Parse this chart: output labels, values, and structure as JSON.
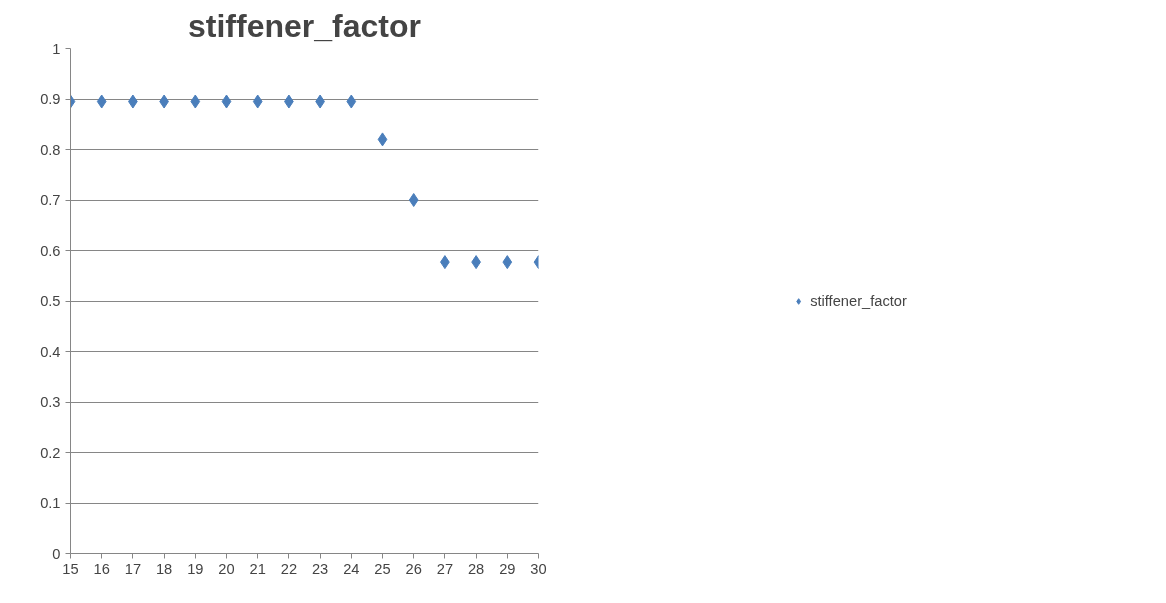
{
  "chart_data": {
    "type": "scatter",
    "title": "stiffener_factor",
    "x": [
      15,
      16,
      17,
      18,
      19,
      20,
      21,
      22,
      23,
      24,
      25,
      26,
      27,
      28,
      29,
      30
    ],
    "series": [
      {
        "name": "stiffener_factor",
        "color": "#4a7ebb",
        "values": [
          0.895,
          0.895,
          0.895,
          0.895,
          0.895,
          0.895,
          0.895,
          0.895,
          0.895,
          0.895,
          0.82,
          0.7,
          0.577,
          0.577,
          0.577,
          0.577
        ]
      }
    ],
    "xlim": [
      15,
      30
    ],
    "xticks": [
      15,
      16,
      17,
      18,
      19,
      20,
      21,
      22,
      23,
      24,
      25,
      26,
      27,
      28,
      29,
      30
    ],
    "ylim": [
      0,
      1
    ],
    "yticks": [
      0,
      0.1,
      0.2,
      0.3,
      0.4,
      0.5,
      0.6,
      0.7,
      0.8,
      0.9,
      1
    ],
    "grid": "y",
    "legend": "right",
    "marker": "diamond"
  }
}
